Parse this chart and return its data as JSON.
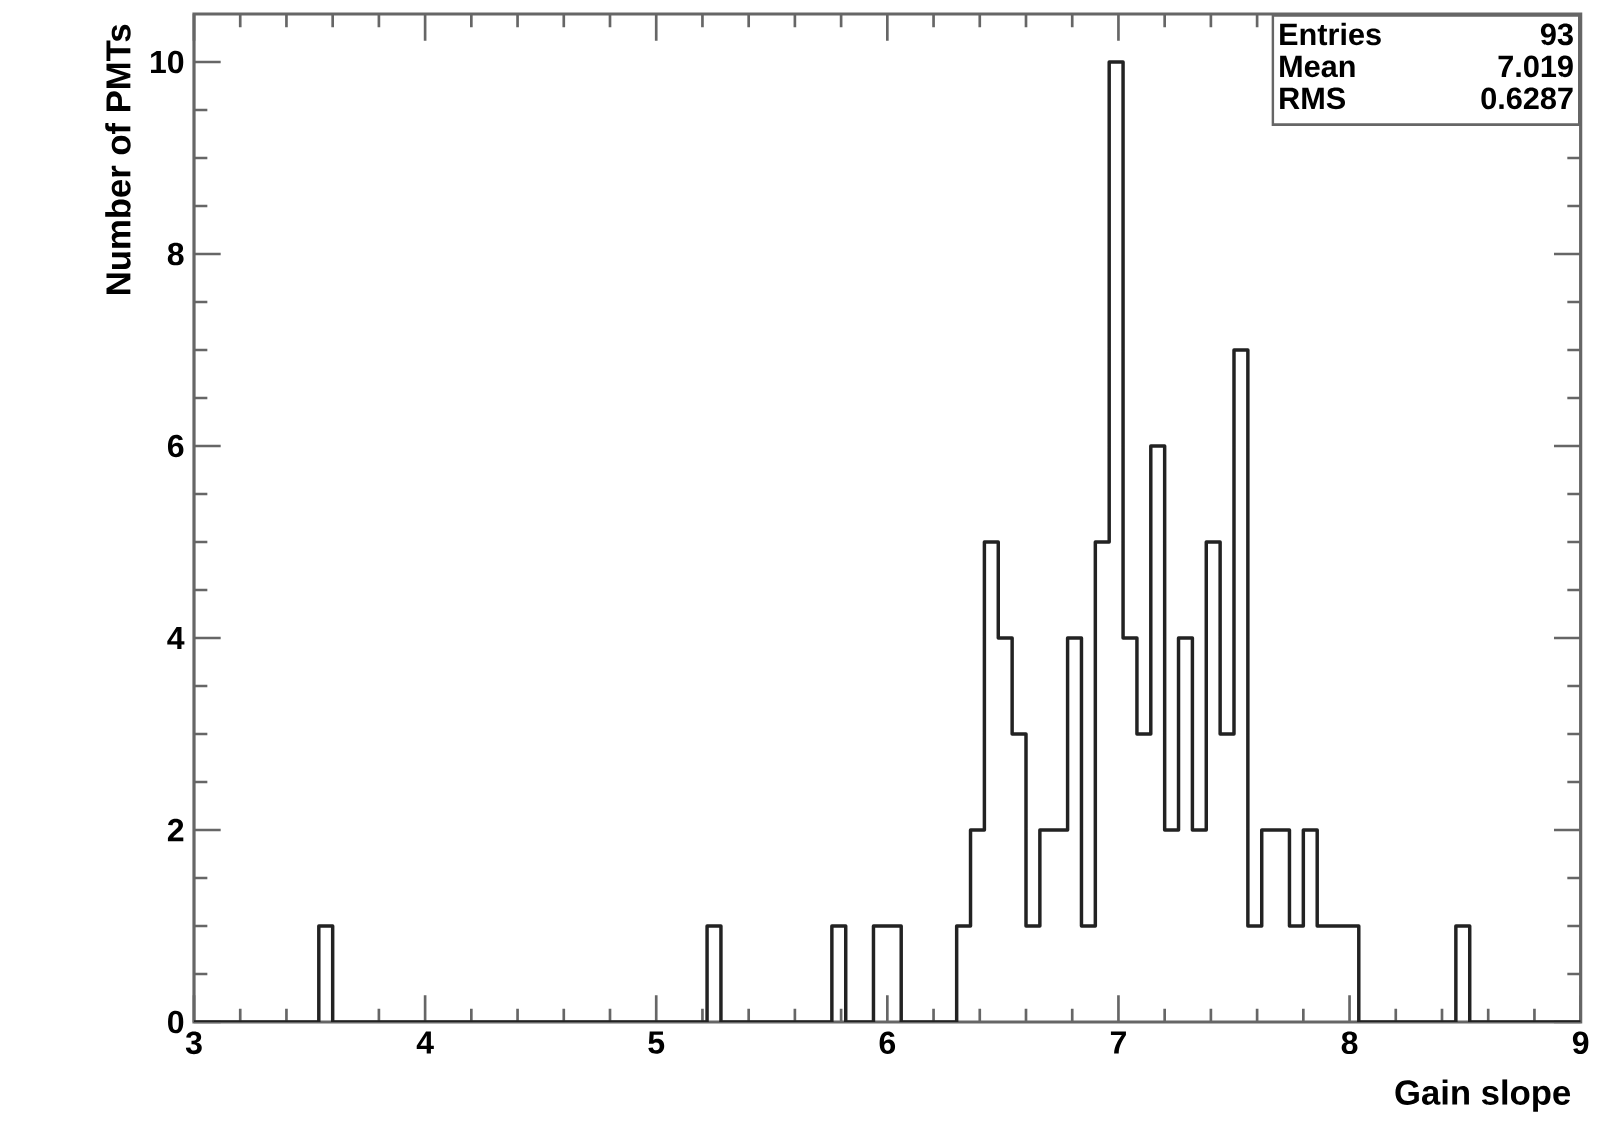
{
  "chart_data": {
    "type": "histogram",
    "xlabel": "Gain slope",
    "ylabel": "Number of PMTs",
    "bins": [
      3.0,
      3.06,
      3.12,
      3.18,
      3.24,
      3.3,
      3.36,
      3.42,
      3.48,
      3.54,
      3.6,
      3.66,
      3.72,
      3.78,
      3.84,
      3.9,
      3.96,
      4.02,
      4.08,
      4.14,
      4.2,
      4.26,
      4.32,
      4.38,
      4.44,
      4.5,
      4.56,
      4.62,
      4.68,
      4.74,
      4.8,
      4.86,
      4.92,
      4.98,
      5.04,
      5.1,
      5.16,
      5.22,
      5.28,
      5.34,
      5.4,
      5.46,
      5.52,
      5.58,
      5.64,
      5.7,
      5.76,
      5.82,
      5.88,
      5.94,
      6.0,
      6.06,
      6.12,
      6.18,
      6.24,
      6.3,
      6.36,
      6.42,
      6.48,
      6.54,
      6.6,
      6.66,
      6.72,
      6.78,
      6.84,
      6.9,
      6.96,
      7.02,
      7.08,
      7.14,
      7.2,
      7.26,
      7.32,
      7.38,
      7.44,
      7.5,
      7.56,
      7.62,
      7.68,
      7.74,
      7.8,
      7.86,
      7.92,
      7.98,
      8.04,
      8.1,
      8.16,
      8.22,
      8.28,
      8.34,
      8.4,
      8.46,
      8.52,
      8.58,
      8.64,
      8.7,
      8.76,
      8.82,
      8.88,
      8.94,
      9.0
    ],
    "values": [
      0,
      0,
      0,
      0,
      0,
      0,
      0,
      0,
      0,
      1,
      0,
      0,
      0,
      0,
      0,
      0,
      0,
      0,
      0,
      0,
      0,
      0,
      0,
      0,
      0,
      0,
      0,
      0,
      0,
      0,
      0,
      0,
      0,
      0,
      0,
      0,
      0,
      1,
      0,
      0,
      0,
      0,
      0,
      0,
      0,
      0,
      1,
      0,
      0,
      1,
      1,
      0,
      0,
      0,
      0,
      1,
      2,
      5,
      4,
      3,
      1,
      2,
      2,
      4,
      1,
      5,
      10,
      4,
      3,
      6,
      2,
      4,
      2,
      5,
      3,
      7,
      1,
      2,
      2,
      1,
      2,
      1,
      1,
      1,
      0,
      0,
      0,
      0,
      0,
      0,
      0,
      1,
      0,
      0,
      0,
      0,
      0,
      0,
      0,
      0
    ],
    "color": "#222222",
    "xlim": [
      3,
      9
    ],
    "ylim": [
      0,
      10.5
    ],
    "xticks": [
      3,
      4,
      5,
      6,
      7,
      8,
      9
    ],
    "yticks": [
      0,
      2,
      4,
      6,
      8,
      10
    ],
    "grid": false,
    "annotations": [
      "Entries",
      "93",
      "Mean",
      "7.019",
      "RMS",
      "0.6287"
    ]
  }
}
